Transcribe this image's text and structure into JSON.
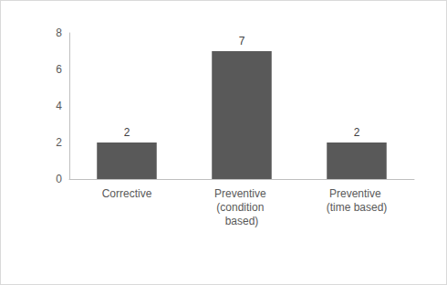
{
  "chart_data": {
    "type": "bar",
    "categories": [
      "Corrective",
      "Preventive (condition based)",
      "Preventive (time based)"
    ],
    "values": [
      2,
      7,
      2
    ],
    "color": "#595959",
    "ylim": [
      0,
      8
    ],
    "yticks": [
      0,
      2,
      4,
      6,
      8
    ],
    "grid": false,
    "data_labels": true
  }
}
